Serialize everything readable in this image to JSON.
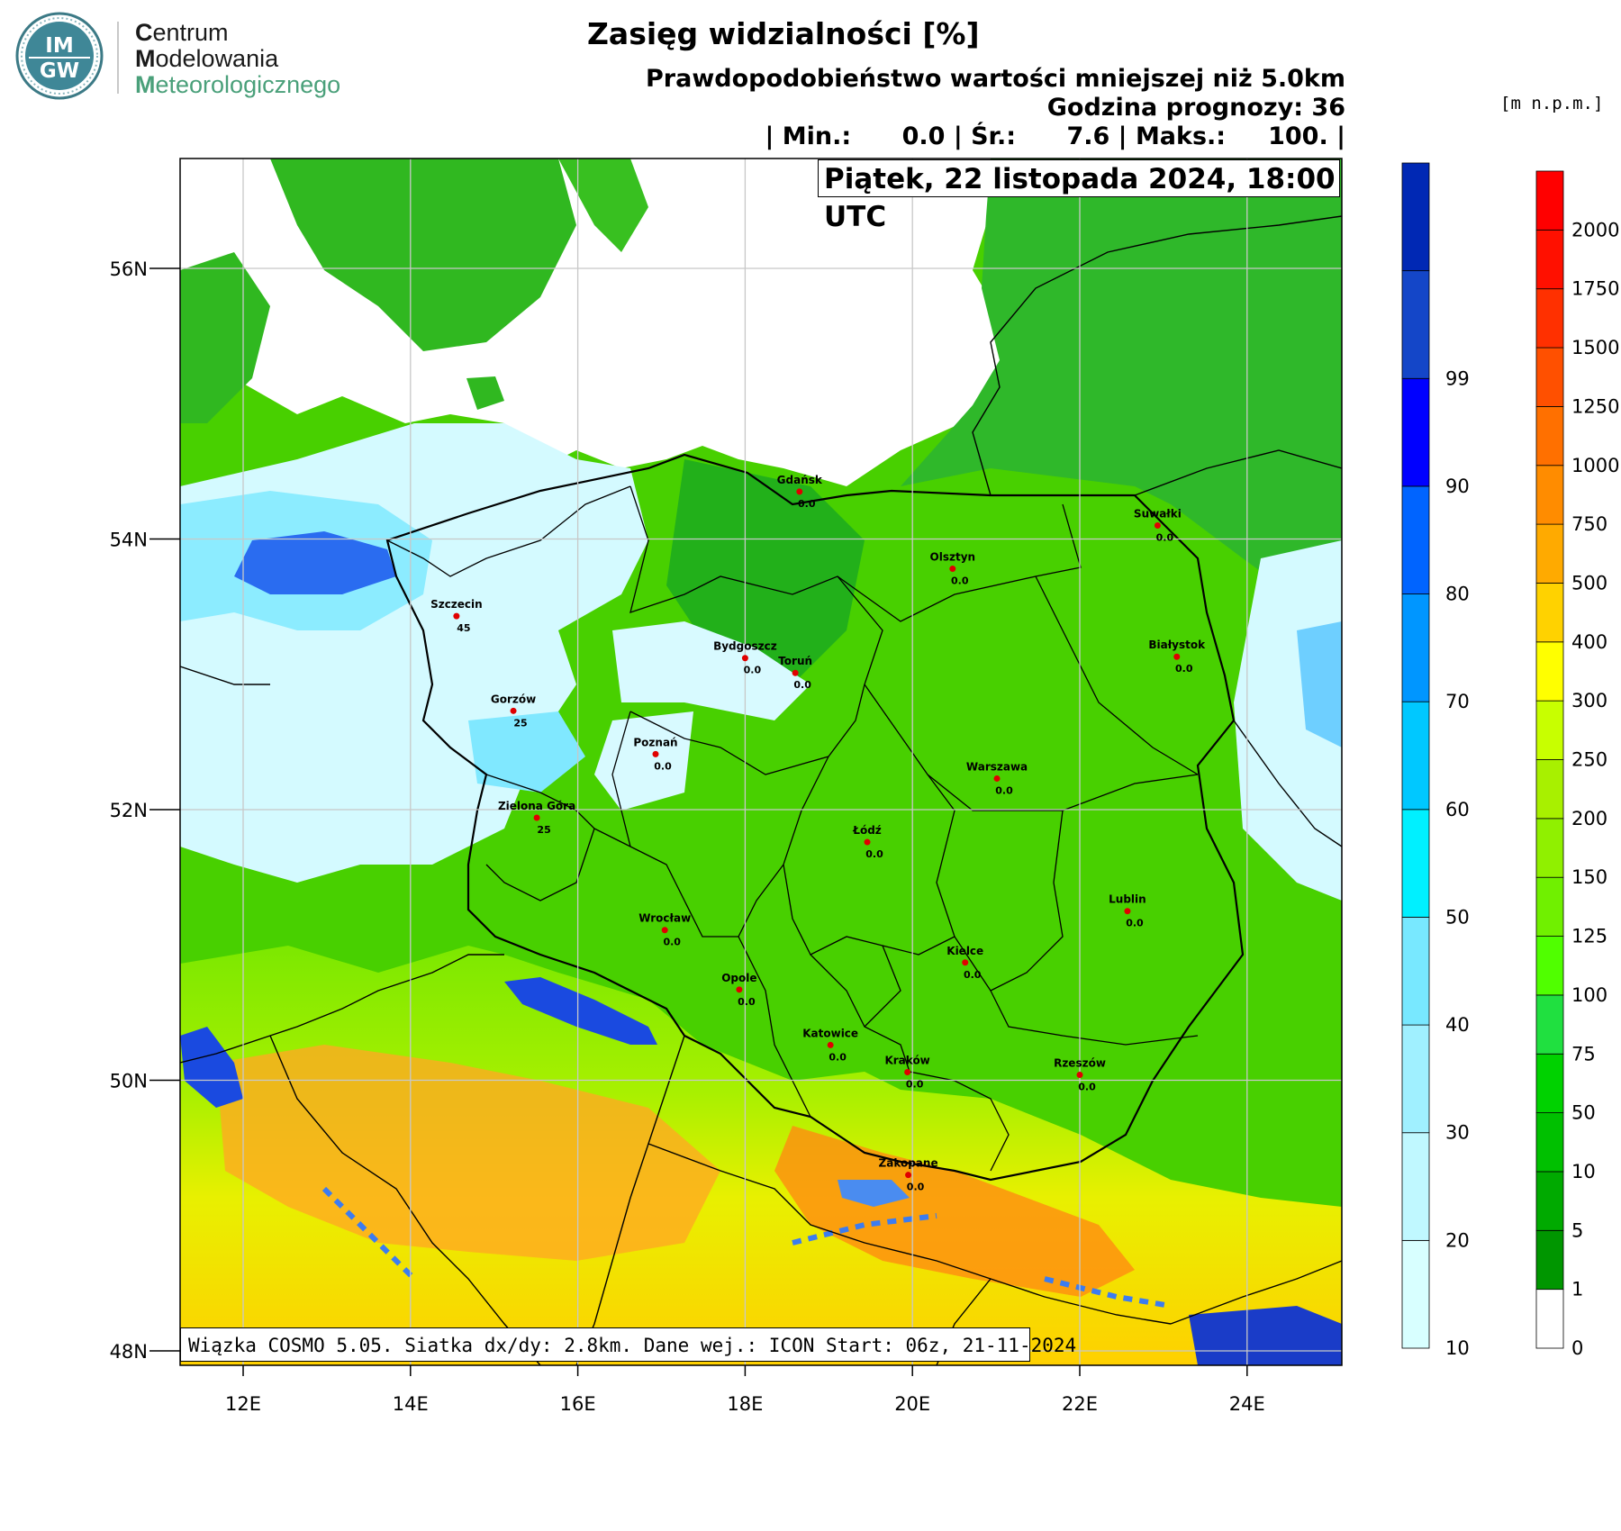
{
  "logo": {
    "badge_top": "IM",
    "badge_bottom": "GW",
    "line1_cap": "C",
    "line1_rest": "entrum",
    "line2_cap": "M",
    "line2_rest": "odelowania",
    "line3_cap": "M",
    "line3_rest": "eteorologicznego"
  },
  "header": {
    "title": "Zasięg widzialności [%]",
    "subtitle": "Prawdopodobieństwo wartości mniejszej niż 5.0km",
    "forecast_hour": "Godzina prognozy: 36",
    "stats": "| Min.:      0.0 | Śr.:      7.6 | Maks.:     100. |",
    "date": "Piątek, 22 listopada 2024, 18:00 UTC"
  },
  "footer": {
    "info": "Wiązka COSMO 5.05. Siatka dx/dy: 2.8km. Dane wej.: ICON Start: 06z, 21-11-2024"
  },
  "map": {
    "lon_labels": [
      "12E",
      "14E",
      "16E",
      "18E",
      "20E",
      "22E",
      "24E"
    ],
    "lat_labels": [
      "56N",
      "54N",
      "52N",
      "50N",
      "48N"
    ],
    "cities": [
      {
        "name": "Gdańsk",
        "value": "0.0",
        "lon": 18.65,
        "lat": 54.35
      },
      {
        "name": "Suwałki",
        "value": "0.0",
        "lon": 22.93,
        "lat": 54.1
      },
      {
        "name": "Olsztyn",
        "value": "0.0",
        "lon": 20.48,
        "lat": 53.78
      },
      {
        "name": "Szczecin",
        "value": "45",
        "lon": 14.55,
        "lat": 53.43
      },
      {
        "name": "Bydgoszcz",
        "value": "0.0",
        "lon": 18.0,
        "lat": 53.12
      },
      {
        "name": "Toruń",
        "value": "0.0",
        "lon": 18.6,
        "lat": 53.01
      },
      {
        "name": "Białystok",
        "value": "0.0",
        "lon": 23.16,
        "lat": 53.13
      },
      {
        "name": "Gorzów",
        "value": "25",
        "lon": 15.23,
        "lat": 52.73
      },
      {
        "name": "Poznań",
        "value": "0.0",
        "lon": 16.93,
        "lat": 52.41
      },
      {
        "name": "Warszawa",
        "value": "0.0",
        "lon": 21.01,
        "lat": 52.23
      },
      {
        "name": "Zielona Góra",
        "value": "25",
        "lon": 15.51,
        "lat": 51.94
      },
      {
        "name": "Łódź",
        "value": "0.0",
        "lon": 19.46,
        "lat": 51.76
      },
      {
        "name": "Lublin",
        "value": "0.0",
        "lon": 22.57,
        "lat": 51.25
      },
      {
        "name": "Wrocław",
        "value": "0.0",
        "lon": 17.04,
        "lat": 51.11
      },
      {
        "name": "Kielce",
        "value": "0.0",
        "lon": 20.63,
        "lat": 50.87
      },
      {
        "name": "Opole",
        "value": "0.0",
        "lon": 17.93,
        "lat": 50.67
      },
      {
        "name": "Katowice",
        "value": "0.0",
        "lon": 19.02,
        "lat": 50.26
      },
      {
        "name": "Kraków",
        "value": "0.0",
        "lon": 19.94,
        "lat": 50.06
      },
      {
        "name": "Rzeszów",
        "value": "0.0",
        "lon": 22.0,
        "lat": 50.04
      },
      {
        "name": "Zakopane",
        "value": "0.0",
        "lon": 19.95,
        "lat": 49.3
      }
    ]
  },
  "legend_probability": {
    "labels": [
      "10",
      "20",
      "30",
      "40",
      "50",
      "60",
      "70",
      "80",
      "90",
      "99"
    ],
    "colors": [
      "#d8ffff",
      "#c0f8ff",
      "#a0f0ff",
      "#78e8ff",
      "#00f0ff",
      "#00c8ff",
      "#0096ff",
      "#0064ff",
      "#0000ff",
      "#1446c8",
      "#0028b4"
    ]
  },
  "legend_height": {
    "unit": "[m n.p.m.]",
    "labels": [
      "0",
      "1",
      "5",
      "10",
      "50",
      "75",
      "100",
      "125",
      "150",
      "200",
      "250",
      "300",
      "400",
      "500",
      "750",
      "1000",
      "1250",
      "1500",
      "1750",
      "2000"
    ],
    "colors": [
      "#ffffff",
      "#009600",
      "#00aa00",
      "#00c000",
      "#00d200",
      "#20e040",
      "#50ff00",
      "#70f000",
      "#90f000",
      "#a8f000",
      "#c8ff00",
      "#ffff00",
      "#ffd200",
      "#ffaa00",
      "#ff8c00",
      "#ff7000",
      "#ff5000",
      "#ff3000",
      "#ff1000",
      "#ff0000"
    ]
  }
}
